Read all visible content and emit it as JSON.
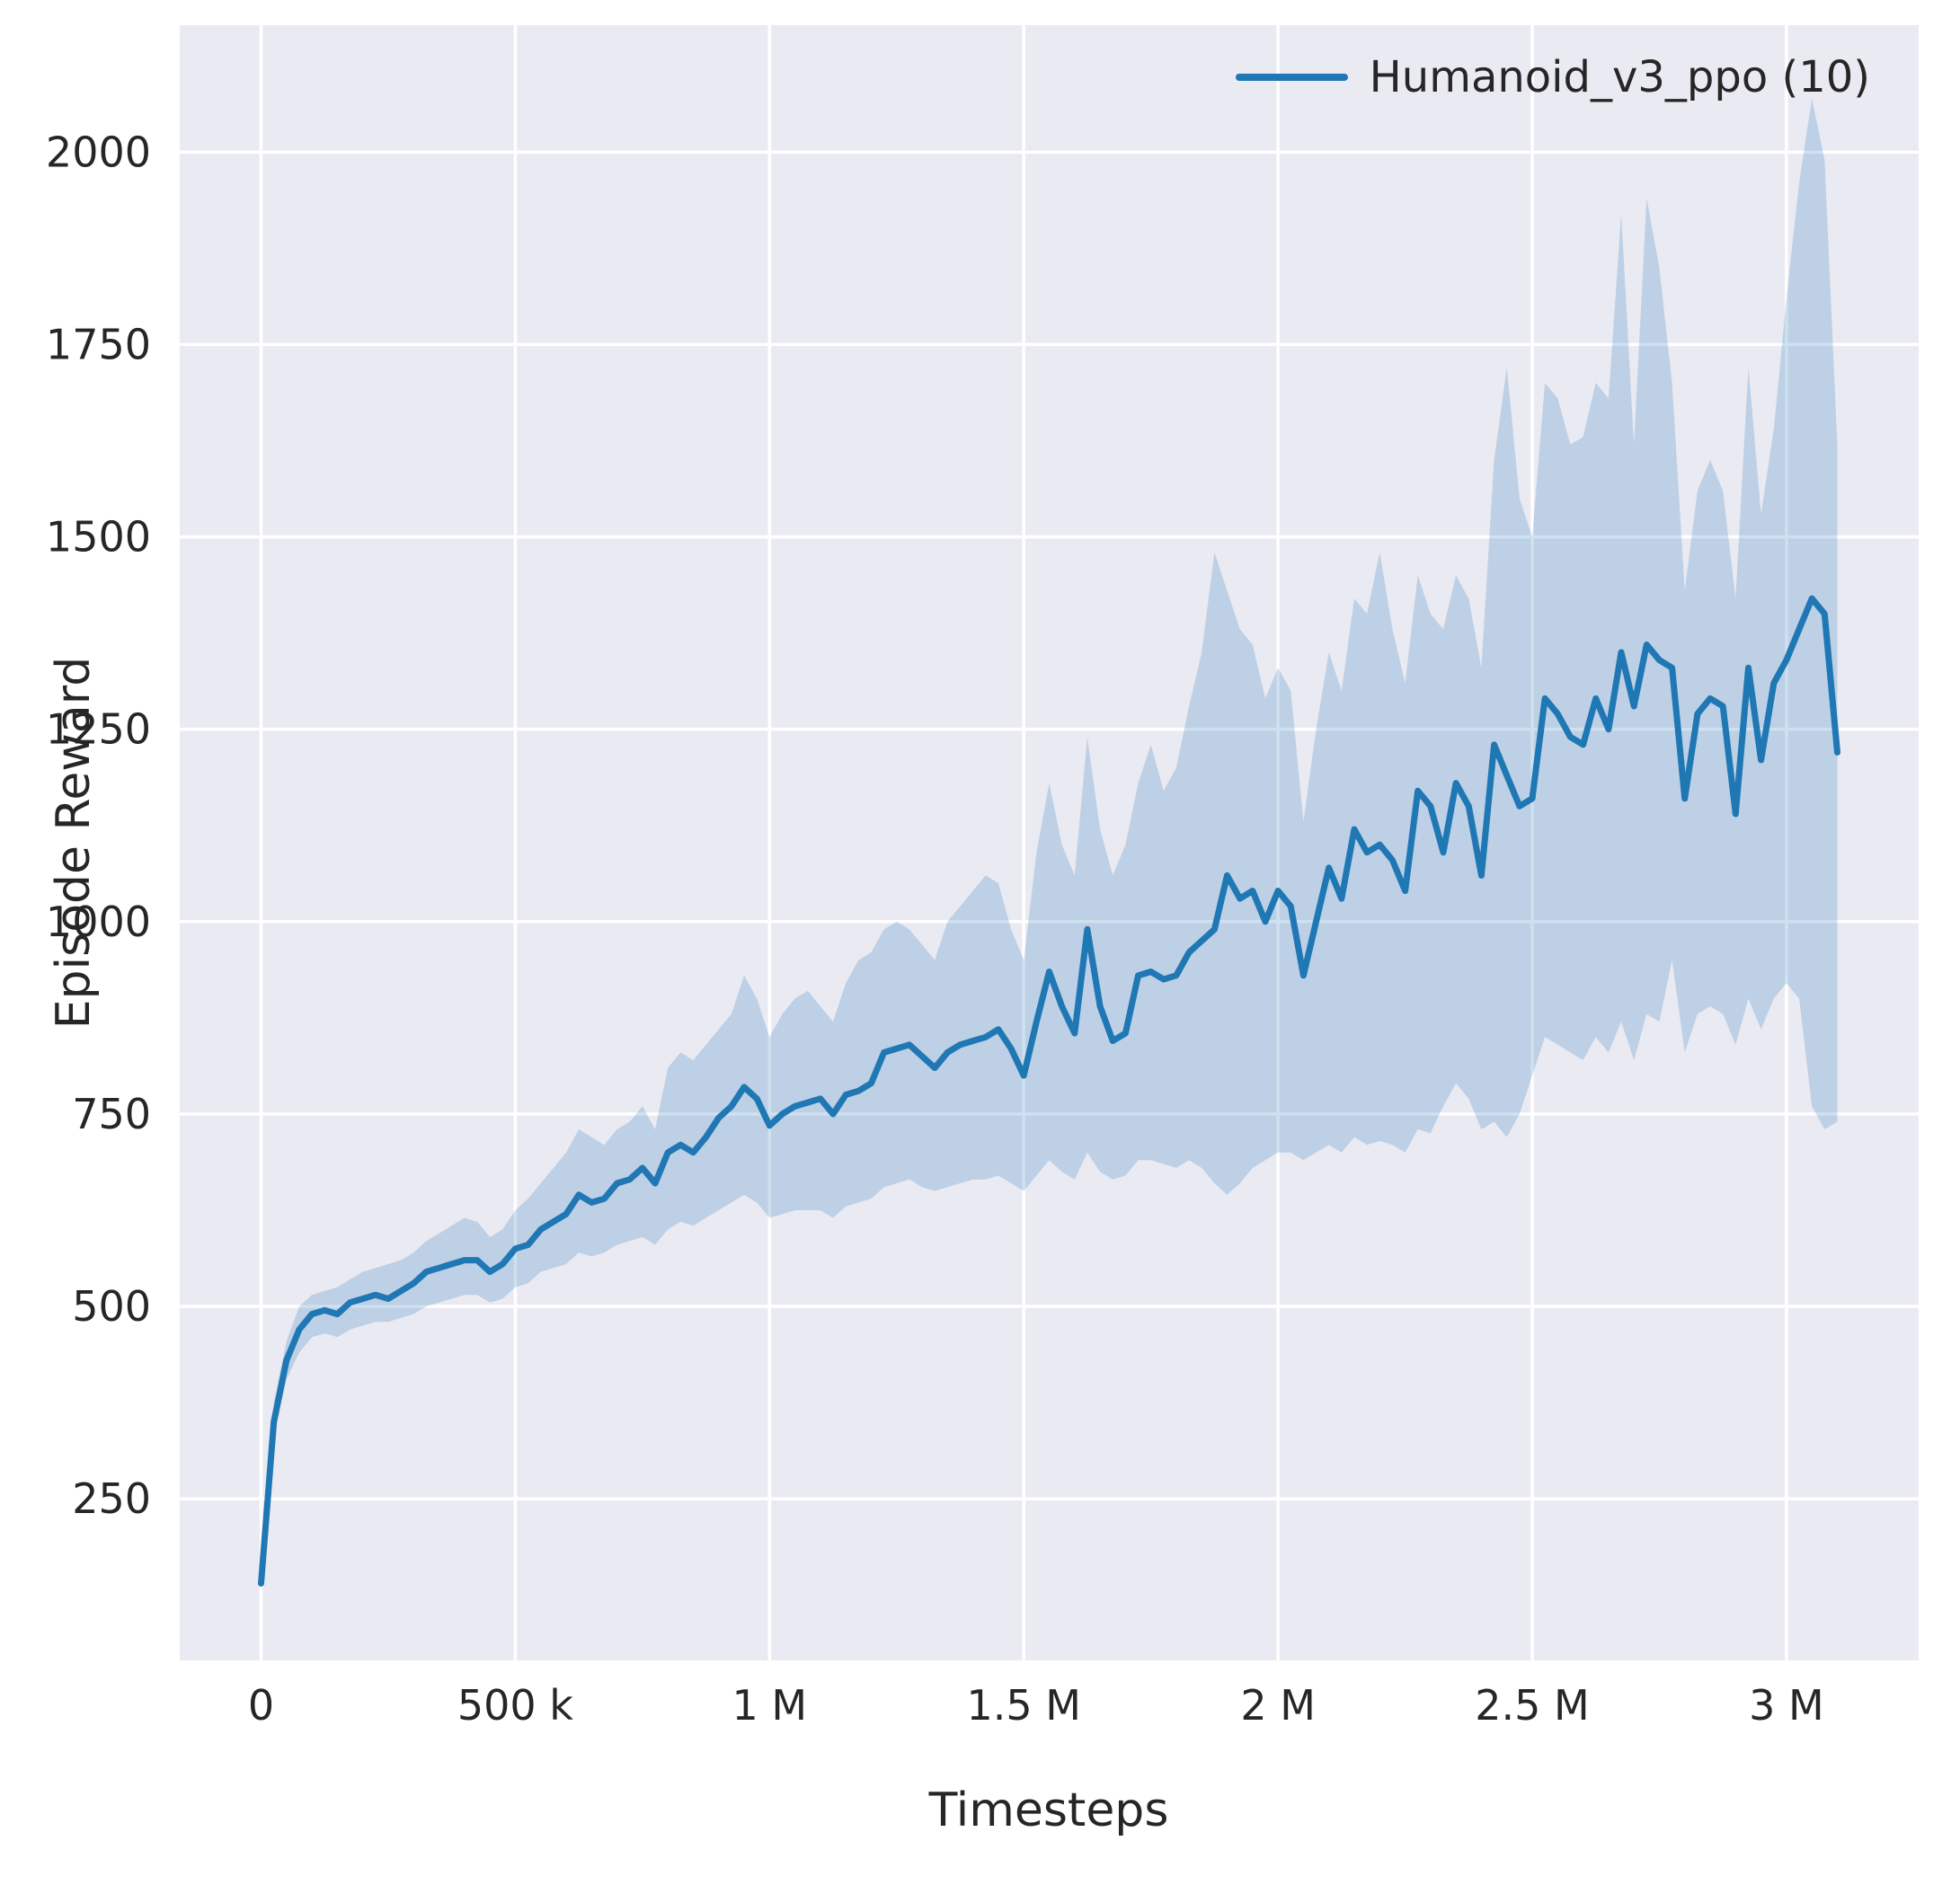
{
  "figure": {
    "xlabel": "Timesteps",
    "ylabel": "Episode Reward",
    "legend": {
      "label": "Humanoid_v3_ppo (10)"
    }
  },
  "chart_data": {
    "type": "line",
    "title": "",
    "xlabel": "Timesteps",
    "ylabel": "Episode Reward",
    "grid": true,
    "legend_position": "upper right",
    "background_color": "#eaeaf2",
    "gridline_color": "#ffffff",
    "line_color": "#1f77b4",
    "band_color": "#1f77b4",
    "band_opacity": 0.22,
    "x_unit": "timesteps (thousands)",
    "xlim_k": [
      -160,
      3260
    ],
    "ylim": [
      40,
      2165
    ],
    "x_ticks": [
      {
        "v": 0,
        "label": "0"
      },
      {
        "v": 500,
        "label": "500 k"
      },
      {
        "v": 1000,
        "label": "1 M"
      },
      {
        "v": 1500,
        "label": "1.5 M"
      },
      {
        "v": 2000,
        "label": "2 M"
      },
      {
        "v": 2500,
        "label": "2.5 M"
      },
      {
        "v": 3000,
        "label": "3 M"
      }
    ],
    "y_ticks": [
      {
        "v": 250,
        "label": "250"
      },
      {
        "v": 500,
        "label": "500"
      },
      {
        "v": 750,
        "label": "750"
      },
      {
        "v": 1000,
        "label": "1000"
      },
      {
        "v": 1250,
        "label": "1250"
      },
      {
        "v": 1500,
        "label": "1500"
      },
      {
        "v": 1750,
        "label": "1750"
      },
      {
        "v": 2000,
        "label": "2000"
      }
    ],
    "series": [
      {
        "name": "Humanoid_v3_ppo (10)",
        "x_k": [
          0,
          25,
          50,
          75,
          100,
          125,
          150,
          175,
          200,
          225,
          250,
          275,
          300,
          325,
          350,
          375,
          400,
          425,
          450,
          475,
          500,
          525,
          550,
          575,
          600,
          625,
          650,
          675,
          700,
          725,
          750,
          775,
          800,
          825,
          850,
          875,
          900,
          925,
          950,
          975,
          1000,
          1025,
          1050,
          1075,
          1100,
          1125,
          1150,
          1175,
          1200,
          1225,
          1250,
          1275,
          1300,
          1325,
          1350,
          1375,
          1400,
          1425,
          1450,
          1475,
          1500,
          1525,
          1550,
          1575,
          1600,
          1625,
          1650,
          1675,
          1700,
          1725,
          1750,
          1775,
          1800,
          1825,
          1850,
          1875,
          1900,
          1925,
          1950,
          1975,
          2000,
          2025,
          2050,
          2075,
          2100,
          2125,
          2150,
          2175,
          2200,
          2225,
          2250,
          2275,
          2300,
          2325,
          2350,
          2375,
          2400,
          2425,
          2450,
          2475,
          2500,
          2525,
          2550,
          2575,
          2600,
          2625,
          2650,
          2675,
          2700,
          2725,
          2750,
          2775,
          2800,
          2825,
          2850,
          2875,
          2900,
          2925,
          2950,
          2975,
          3000,
          3025,
          3050,
          3075,
          3100
        ],
        "mean": [
          140,
          350,
          430,
          470,
          490,
          495,
          490,
          505,
          510,
          515,
          510,
          520,
          530,
          545,
          550,
          555,
          560,
          560,
          545,
          555,
          575,
          580,
          600,
          610,
          620,
          645,
          635,
          640,
          660,
          665,
          680,
          660,
          700,
          710,
          700,
          720,
          745,
          760,
          785,
          770,
          735,
          750,
          760,
          765,
          770,
          750,
          775,
          780,
          790,
          830,
          835,
          840,
          825,
          810,
          830,
          840,
          845,
          850,
          860,
          835,
          800,
          870,
          935,
          890,
          855,
          990,
          890,
          845,
          855,
          930,
          935,
          925,
          930,
          960,
          975,
          990,
          1060,
          1030,
          1040,
          1000,
          1040,
          1020,
          930,
          1000,
          1070,
          1030,
          1120,
          1090,
          1100,
          1080,
          1040,
          1170,
          1150,
          1090,
          1180,
          1150,
          1060,
          1230,
          1190,
          1150,
          1160,
          1290,
          1270,
          1240,
          1230,
          1290,
          1250,
          1350,
          1280,
          1360,
          1340,
          1330,
          1160,
          1270,
          1290,
          1280,
          1140,
          1330,
          1210,
          1310,
          1340,
          1380,
          1420,
          1400,
          1220
        ],
        "lo": [
          135,
          330,
          405,
          440,
          460,
          465,
          460,
          470,
          475,
          480,
          480,
          485,
          490,
          500,
          505,
          510,
          515,
          515,
          505,
          510,
          525,
          530,
          545,
          550,
          555,
          570,
          565,
          570,
          580,
          585,
          590,
          580,
          600,
          610,
          605,
          615,
          625,
          635,
          645,
          635,
          615,
          620,
          625,
          625,
          625,
          615,
          630,
          635,
          640,
          655,
          660,
          665,
          655,
          650,
          655,
          660,
          665,
          665,
          670,
          660,
          650,
          670,
          690,
          675,
          665,
          700,
          675,
          665,
          670,
          690,
          690,
          685,
          680,
          690,
          680,
          660,
          645,
          660,
          680,
          690,
          700,
          700,
          690,
          700,
          710,
          700,
          720,
          710,
          715,
          710,
          700,
          730,
          725,
          760,
          790,
          770,
          730,
          740,
          720,
          750,
          800,
          850,
          840,
          830,
          820,
          850,
          830,
          870,
          820,
          880,
          870,
          950,
          830,
          880,
          890,
          880,
          840,
          900,
          860,
          900,
          920,
          900,
          760,
          730,
          740
        ],
        "hi": [
          150,
          375,
          455,
          500,
          515,
          520,
          525,
          535,
          545,
          550,
          555,
          560,
          570,
          585,
          595,
          605,
          615,
          610,
          590,
          600,
          625,
          640,
          660,
          680,
          700,
          730,
          720,
          710,
          730,
          740,
          760,
          730,
          810,
          830,
          820,
          840,
          860,
          880,
          930,
          900,
          850,
          880,
          900,
          910,
          890,
          870,
          920,
          950,
          960,
          990,
          1000,
          990,
          970,
          950,
          1000,
          1020,
          1040,
          1060,
          1050,
          990,
          950,
          1090,
          1180,
          1100,
          1060,
          1240,
          1120,
          1060,
          1100,
          1180,
          1230,
          1170,
          1200,
          1280,
          1350,
          1480,
          1430,
          1380,
          1360,
          1290,
          1330,
          1300,
          1130,
          1250,
          1350,
          1300,
          1420,
          1400,
          1480,
          1380,
          1310,
          1450,
          1400,
          1380,
          1450,
          1420,
          1330,
          1600,
          1720,
          1550,
          1500,
          1700,
          1680,
          1620,
          1630,
          1700,
          1680,
          1920,
          1620,
          1940,
          1850,
          1700,
          1430,
          1560,
          1600,
          1560,
          1420,
          1720,
          1530,
          1640,
          1810,
          1960,
          2070,
          1990,
          1620
        ]
      }
    ]
  }
}
